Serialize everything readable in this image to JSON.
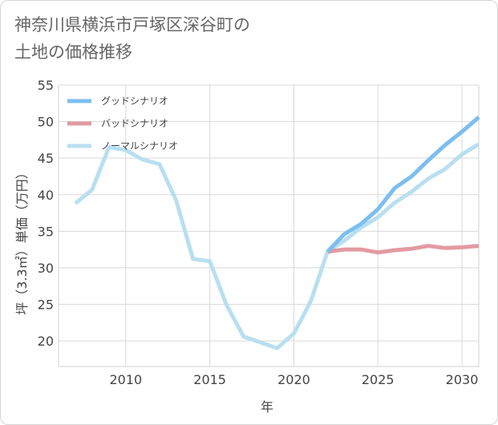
{
  "page": {
    "title_line1": "神奈川県横浜市戸塚区深谷町の",
    "title_line2": "土地の価格推移"
  },
  "chart_data": {
    "type": "line",
    "title": "神奈川県横浜市戸塚区深谷町の土地の価格推移",
    "xlabel": "年",
    "ylabel": "坪（3.3㎡）単価（万円）",
    "xlim": [
      2006,
      2031
    ],
    "ylim": [
      16.5,
      55
    ],
    "xticks": [
      2010,
      2015,
      2020,
      2025,
      2030
    ],
    "yticks": [
      20,
      25,
      30,
      35,
      40,
      45,
      50,
      55
    ],
    "grid": true,
    "legend_position": "top-left",
    "series": [
      {
        "name": "グッドシナリオ",
        "color": "#7cbef0",
        "x": [
          2022,
          2023,
          2024,
          2025,
          2026,
          2027,
          2028,
          2029,
          2030,
          2031
        ],
        "values": [
          32.2,
          34.6,
          36.0,
          38.0,
          40.9,
          42.5,
          44.7,
          46.8,
          48.6,
          50.6
        ]
      },
      {
        "name": "バッドシナリオ",
        "color": "#e29aa0",
        "x": [
          2022,
          2023,
          2024,
          2025,
          2026,
          2027,
          2028,
          2029,
          2030,
          2031
        ],
        "values": [
          32.2,
          32.5,
          32.5,
          32.1,
          32.4,
          32.6,
          33.0,
          32.7,
          32.8,
          33.0
        ]
      },
      {
        "name": "ノーマルシナリオ",
        "color": "#b8dff0",
        "x": [
          2007,
          2008,
          2009,
          2010,
          2011,
          2012,
          2013,
          2014,
          2015,
          2016,
          2017,
          2018,
          2019,
          2020,
          2021,
          2022,
          2023,
          2024,
          2025,
          2026,
          2027,
          2028,
          2029,
          2030,
          2031
        ],
        "values": [
          38.8,
          40.7,
          46.5,
          46.1,
          44.8,
          44.2,
          39.2,
          31.2,
          30.9,
          24.9,
          20.6,
          19.8,
          19.0,
          21.0,
          25.4,
          32.2,
          33.7,
          35.5,
          36.9,
          38.9,
          40.4,
          42.2,
          43.5,
          45.5,
          46.9
        ]
      }
    ]
  }
}
